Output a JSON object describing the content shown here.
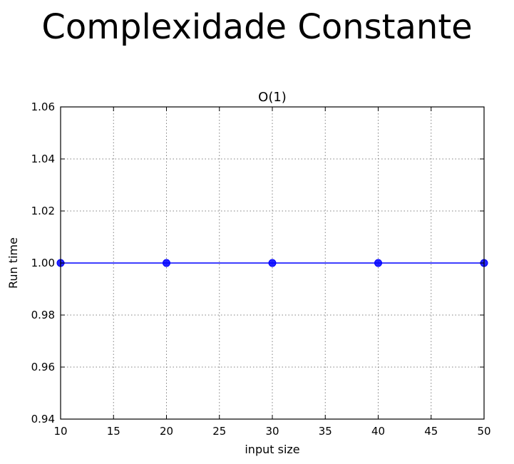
{
  "slide": {
    "title": "Complexidade Constante"
  },
  "chart_data": {
    "type": "line",
    "title": "O(1)",
    "xlabel": "input size",
    "ylabel": "Run time",
    "xlim": [
      10,
      50
    ],
    "ylim": [
      0.94,
      1.06
    ],
    "x_ticks": [
      10,
      15,
      20,
      25,
      30,
      35,
      40,
      45,
      50
    ],
    "y_ticks": [
      0.94,
      0.96,
      0.98,
      1.0,
      1.02,
      1.04,
      1.06
    ],
    "x_tick_labels": [
      "10",
      "15",
      "20",
      "25",
      "30",
      "35",
      "40",
      "45",
      "50"
    ],
    "y_tick_labels": [
      "0.94",
      "0.96",
      "0.98",
      "1.00",
      "1.02",
      "1.04",
      "1.06"
    ],
    "grid": true,
    "series": [
      {
        "x": [
          10,
          20,
          30,
          40,
          50
        ],
        "values": [
          1.0,
          1.0,
          1.0,
          1.0,
          1.0
        ],
        "color": "#0000ff",
        "marker": "circle"
      }
    ]
  }
}
